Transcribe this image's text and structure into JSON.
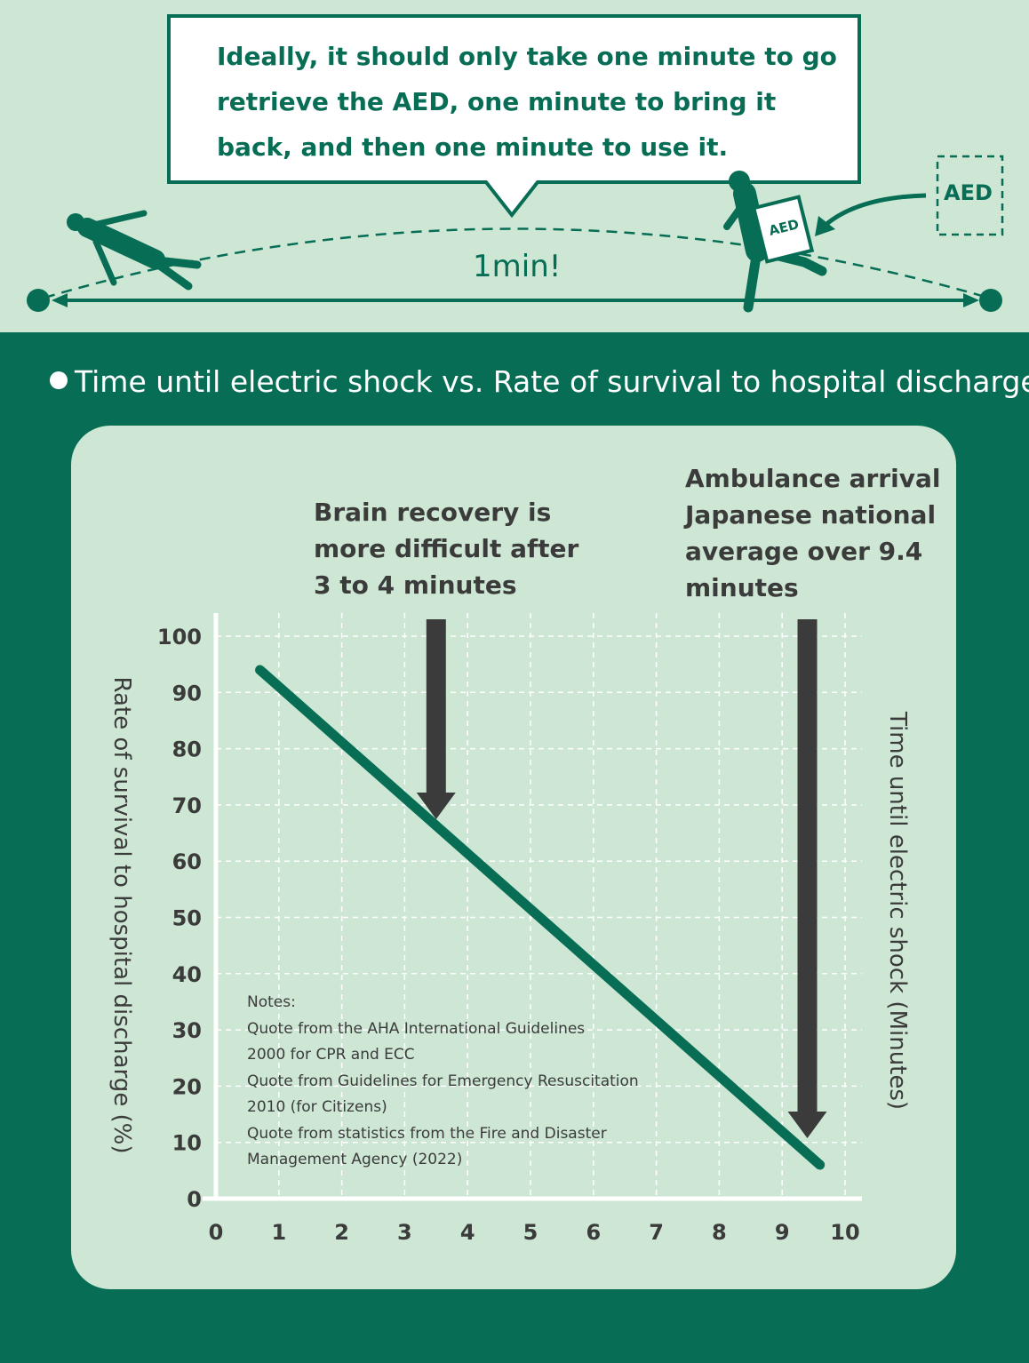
{
  "header": {
    "bubble_text": "Ideally, it should only take one minute to go retrieve the AED, one minute to bring it back, and then one minute to use it.",
    "distance_label": "1min!",
    "aed_box_label": "AED",
    "aed_carry_label": "AED"
  },
  "section_title": "Time until electric shock vs. Rate of survival to hospital discharge",
  "annotations": {
    "brain": "Brain recovery is more difficult after 3 to 4 minutes",
    "ambulance": "Ambulance arrival Japanese national average over 9.4 minutes"
  },
  "notes": [
    "Notes:",
    "Quote from the AHA International Guidelines",
    "2000 for CPR and ECC",
    "Quote from Guidelines for Emergency Resuscitation",
    "2010 (for Citizens)",
    "Quote from statistics from the Fire and Disaster",
    "Management Agency (2022)"
  ],
  "colors": {
    "brand_green": "#076d55",
    "pale_green": "#cde7d4",
    "arrow_gray": "#3b3b3b"
  },
  "icons": [
    "collapsed-person-icon",
    "running-person-with-aed-icon",
    "curved-arrow-icon",
    "double-arrow-icon"
  ],
  "chart_data": {
    "type": "line",
    "title": "Time until electric shock vs. Rate of survival to hospital discharge",
    "xlabel": "Time until electric shock (Minutes)",
    "ylabel": "Rate of survival to hospital discharge (%)",
    "xlim": [
      0,
      10
    ],
    "ylim": [
      0,
      100
    ],
    "x_ticks": [
      0,
      1,
      2,
      3,
      4,
      5,
      6,
      7,
      8,
      9,
      10
    ],
    "y_ticks": [
      0,
      10,
      20,
      30,
      40,
      50,
      60,
      70,
      80,
      90,
      100
    ],
    "grid": true,
    "series": [
      {
        "x": [
          0.7,
          9.6
        ],
        "y": [
          94,
          6
        ]
      }
    ],
    "markers": [
      {
        "x": 3.5,
        "label": "Brain recovery is more difficult after 3 to 4 minutes"
      },
      {
        "x": 9.4,
        "label": "Ambulance arrival Japanese national average over 9.4 minutes"
      }
    ]
  }
}
